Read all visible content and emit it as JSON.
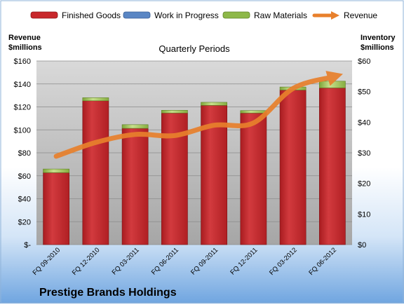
{
  "chart_data": {
    "type": "bar",
    "title": "Quarterly Periods",
    "footer_title": "Prestige Brands Holdings",
    "left_axis_label": [
      "Revenue",
      "$millions"
    ],
    "right_axis_label": [
      "Inventory",
      "$millions"
    ],
    "categories": [
      "FQ 09-2010",
      "FQ 12-2010",
      "FQ 03-2011",
      "FQ 06-2011",
      "FQ 09-2011",
      "FQ 12-2011",
      "FQ 03-2012",
      "FQ 06-2012"
    ],
    "left_ticks": [
      "$-",
      "$20",
      "$40",
      "$60",
      "$80",
      "$100",
      "$120",
      "$140",
      "$160"
    ],
    "right_ticks": [
      "$0",
      "$10",
      "$20",
      "$30",
      "$40",
      "$50",
      "$60"
    ],
    "left_range": [
      0,
      160
    ],
    "right_range": [
      0,
      60
    ],
    "stacked_series": [
      {
        "name": "Finished Goods",
        "axis": "right",
        "color": "#c8272b",
        "values": [
          23.5,
          47.0,
          38.0,
          43.0,
          45.5,
          43.0,
          50.5,
          51.2
        ]
      },
      {
        "name": "Work in Progress",
        "axis": "right",
        "color": "#5a86c4",
        "values": [
          0,
          0,
          0,
          0,
          0,
          0,
          0,
          0
        ]
      },
      {
        "name": "Raw Materials",
        "axis": "right",
        "color": "#8db848",
        "values": [
          1.2,
          1.0,
          1.2,
          0.9,
          1.0,
          0.8,
          1.0,
          2.2
        ]
      }
    ],
    "line_series": {
      "name": "Revenue",
      "axis": "left",
      "color": "#e8802c",
      "values": [
        77,
        89,
        96,
        95,
        104,
        106,
        136,
        146
      ]
    },
    "legend": [
      "Finished Goods",
      "Work in Progress",
      "Raw Materials",
      "Revenue"
    ],
    "legend_position": "top",
    "grid": true
  }
}
